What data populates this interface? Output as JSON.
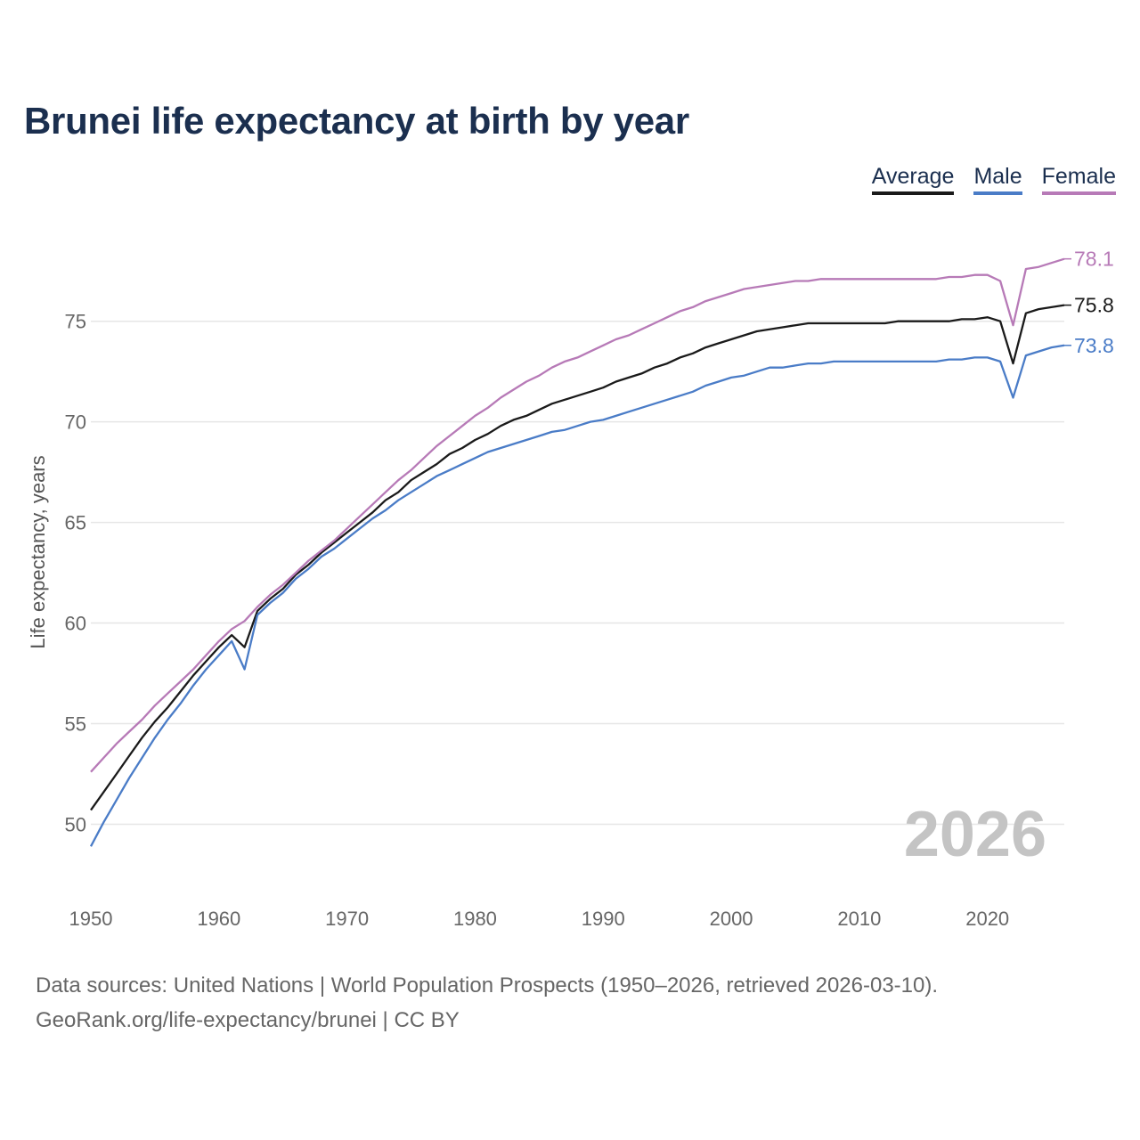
{
  "title": "Brunei life expectancy at birth by year",
  "legend": [
    "Average",
    "Male",
    "Female"
  ],
  "watermark_year": "2026",
  "footer": {
    "line1": "Data sources: United Nations | World Population Prospects (1950–2026, retrieved 2026-03-10).",
    "line2": "GeoRank.org/life-expectancy/brunei | CC BY"
  },
  "chart_data": {
    "type": "line",
    "title": "Brunei life expectancy at birth by year",
    "xlabel": "",
    "ylabel": "Life expectancy, years",
    "xlim": [
      1950,
      2026
    ],
    "ylim": [
      46.7,
      79.9
    ],
    "xticks": [
      1950,
      1960,
      1970,
      1980,
      1990,
      2000,
      2010,
      2020
    ],
    "yticks": [
      50,
      55,
      60,
      65,
      70,
      75
    ],
    "grid": true,
    "legend_position": "top-right",
    "x_start": 1950,
    "series": [
      {
        "name": "Average",
        "color": "#1a1a1a",
        "end_label": "75.8",
        "values": [
          50.7,
          51.6,
          52.5,
          53.4,
          54.3,
          55.1,
          55.8,
          56.6,
          57.4,
          58.1,
          58.8,
          59.4,
          58.8,
          60.6,
          61.2,
          61.7,
          62.4,
          62.9,
          63.5,
          64.0,
          64.5,
          65.0,
          65.5,
          66.1,
          66.5,
          67.1,
          67.5,
          67.9,
          68.4,
          68.7,
          69.1,
          69.4,
          69.8,
          70.1,
          70.3,
          70.6,
          70.9,
          71.1,
          71.3,
          71.5,
          71.7,
          72.0,
          72.2,
          72.4,
          72.7,
          72.9,
          73.2,
          73.4,
          73.7,
          73.9,
          74.1,
          74.3,
          74.5,
          74.6,
          74.7,
          74.8,
          74.9,
          74.9,
          74.9,
          74.9,
          74.9,
          74.9,
          74.9,
          75.0,
          75.0,
          75.0,
          75.0,
          75.0,
          75.1,
          75.1,
          75.2,
          75.0,
          72.9,
          75.4,
          75.6,
          75.7,
          75.8
        ]
      },
      {
        "name": "Male",
        "color": "#4a7cc7",
        "end_label": "73.8",
        "values": [
          48.9,
          50.1,
          51.2,
          52.3,
          53.3,
          54.3,
          55.2,
          56.0,
          56.9,
          57.7,
          58.4,
          59.1,
          57.7,
          60.4,
          61.0,
          61.5,
          62.2,
          62.7,
          63.3,
          63.7,
          64.2,
          64.7,
          65.2,
          65.6,
          66.1,
          66.5,
          66.9,
          67.3,
          67.6,
          67.9,
          68.2,
          68.5,
          68.7,
          68.9,
          69.1,
          69.3,
          69.5,
          69.6,
          69.8,
          70.0,
          70.1,
          70.3,
          70.5,
          70.7,
          70.9,
          71.1,
          71.3,
          71.5,
          71.8,
          72.0,
          72.2,
          72.3,
          72.5,
          72.7,
          72.7,
          72.8,
          72.9,
          72.9,
          73.0,
          73.0,
          73.0,
          73.0,
          73.0,
          73.0,
          73.0,
          73.0,
          73.0,
          73.1,
          73.1,
          73.2,
          73.2,
          73.0,
          71.2,
          73.3,
          73.5,
          73.7,
          73.8
        ]
      },
      {
        "name": "Female",
        "color": "#b77ab7",
        "end_label": "78.1",
        "values": [
          52.6,
          53.3,
          54.0,
          54.6,
          55.2,
          55.9,
          56.5,
          57.1,
          57.7,
          58.4,
          59.1,
          59.7,
          60.1,
          60.8,
          61.4,
          61.9,
          62.5,
          63.1,
          63.6,
          64.1,
          64.7,
          65.3,
          65.9,
          66.5,
          67.1,
          67.6,
          68.2,
          68.8,
          69.3,
          69.8,
          70.3,
          70.7,
          71.2,
          71.6,
          72.0,
          72.3,
          72.7,
          73.0,
          73.2,
          73.5,
          73.8,
          74.1,
          74.3,
          74.6,
          74.9,
          75.2,
          75.5,
          75.7,
          76.0,
          76.2,
          76.4,
          76.6,
          76.7,
          76.8,
          76.9,
          77.0,
          77.0,
          77.1,
          77.1,
          77.1,
          77.1,
          77.1,
          77.1,
          77.1,
          77.1,
          77.1,
          77.1,
          77.2,
          77.2,
          77.3,
          77.3,
          77.0,
          74.8,
          77.6,
          77.7,
          77.9,
          78.1
        ]
      }
    ]
  }
}
